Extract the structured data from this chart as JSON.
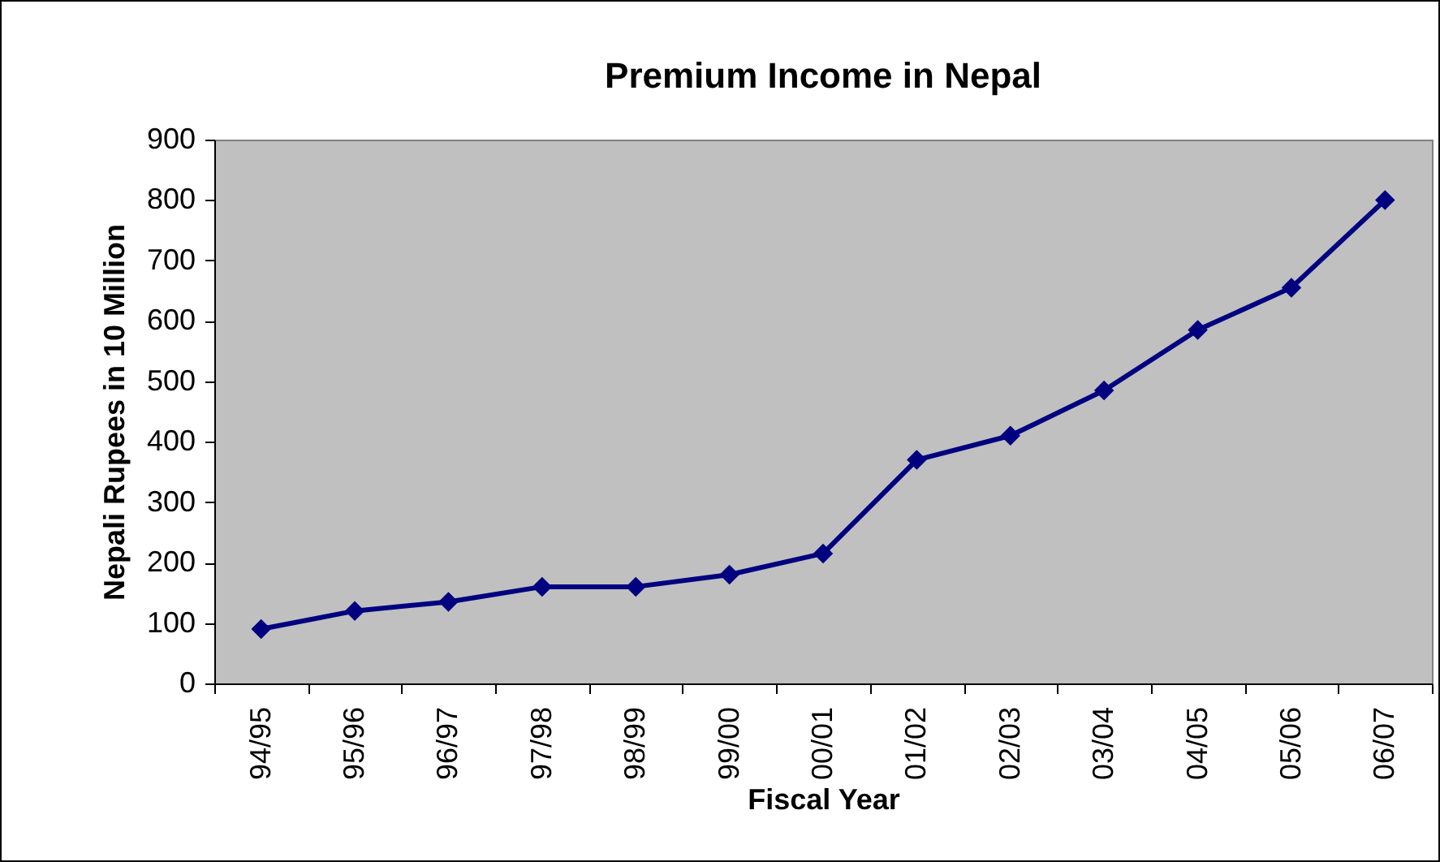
{
  "chart_data": {
    "type": "line",
    "title": "Premium Income in Nepal",
    "xlabel": "Fiscal Year",
    "ylabel": "Nepali Rupees in 10 Million",
    "categories": [
      "94/95",
      "95/96",
      "96/97",
      "97/98",
      "98/99",
      "99/00",
      "00/01",
      "01/02",
      "02/03",
      "03/04",
      "04/05",
      "05/06",
      "06/07"
    ],
    "series": [
      {
        "color": "#000080",
        "values": [
          90,
          120,
          135,
          160,
          160,
          180,
          215,
          370,
          410,
          485,
          585,
          655,
          800
        ]
      }
    ],
    "ylim": [
      0,
      900
    ],
    "yticks": [
      0,
      100,
      200,
      300,
      400,
      500,
      600,
      700,
      800,
      900
    ],
    "grid": false,
    "marker": "diamond",
    "line_style": "solid"
  }
}
